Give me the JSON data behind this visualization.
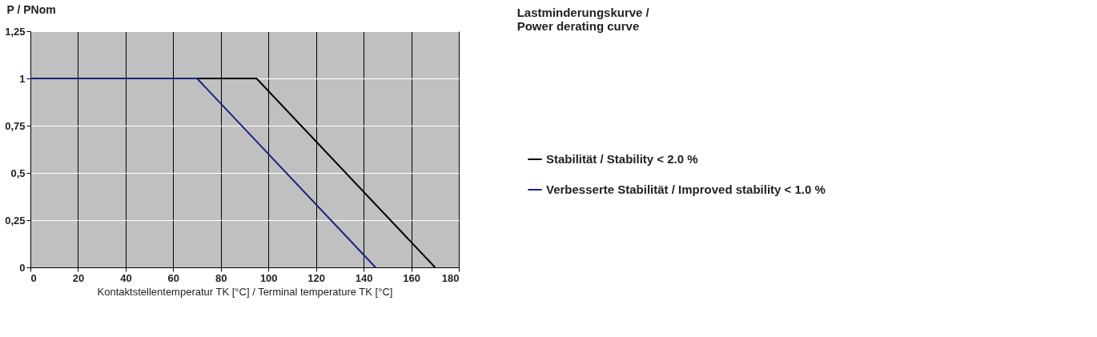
{
  "chart_data": {
    "type": "line",
    "title": [
      "Lastminderungskurve /",
      "Power derating curve"
    ],
    "xlabel": "Kontaktstellentemperatur TK [°C] / Terminal temperature TK [°C]",
    "ylabel": "P / PNom",
    "series": [
      {
        "name": "Stabilität / Stability < 2.0 %",
        "color": "#000000",
        "x": [
          0,
          95,
          170
        ],
        "values": [
          1,
          1,
          0
        ]
      },
      {
        "name": "Verbesserte Stabilität / Improved stability < 1.0 %",
        "color": "#1a237e",
        "x": [
          0,
          70,
          145
        ],
        "values": [
          1,
          1,
          0
        ]
      }
    ],
    "xlim": [
      0,
      180
    ],
    "xticks": [
      0,
      20,
      40,
      60,
      80,
      100,
      120,
      140,
      160,
      180
    ],
    "ylim": [
      0,
      1.25
    ],
    "yticks": [
      0,
      {
        "value": 0.25,
        "label": "0,25"
      },
      {
        "value": 0.5,
        "label": "0,5"
      },
      {
        "value": 0.75,
        "label": "0,75"
      },
      1,
      {
        "value": 1.25,
        "label": "1,25"
      }
    ],
    "grid": true,
    "legend": "right",
    "line_style": "solid"
  }
}
